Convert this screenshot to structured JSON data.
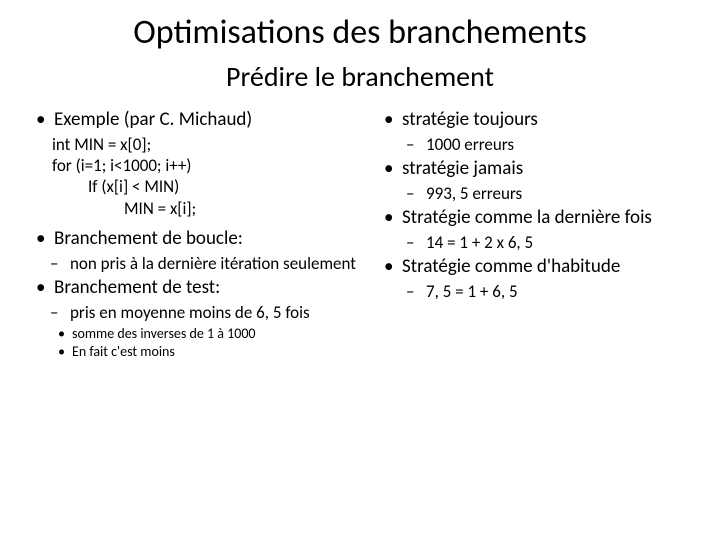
{
  "title": "Optimisations des branchements",
  "subtitle": "Prédire le branchement",
  "left": {
    "item1": "Exemple (par C. Michaud)",
    "code1": "int MIN = x[0];",
    "code2": "for (i=1; i<1000; i++)",
    "code3": "If (x[i] < MIN)",
    "code4": "MIN = x[i];",
    "item2": "Branchement de boucle:",
    "sub2a": "non pris à la dernière itération seulement",
    "item3": "Branchement de test:",
    "sub3a": "pris en moyenne moins de 6, 5 fois",
    "sub3a1": "somme des inverses de 1 à 1000",
    "sub3a2": "En fait c'est moins"
  },
  "right": {
    "item1": "stratégie toujours",
    "sub1a": "1000 erreurs",
    "item2": "stratégie jamais",
    "sub2a": "993, 5 erreurs",
    "item3": "Stratégie comme la dernière fois",
    "sub3a": "14 = 1 + 2 x 6, 5",
    "item4": "Stratégie comme d'habitude",
    "sub4a": "7, 5 = 1 + 6, 5"
  }
}
